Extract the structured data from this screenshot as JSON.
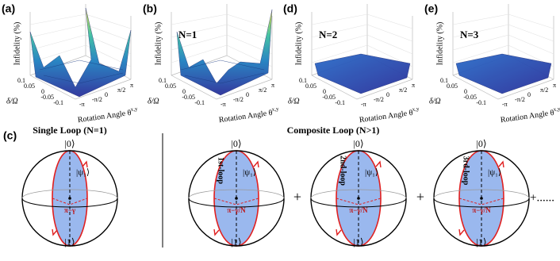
{
  "panels": [
    {
      "label": "(a)",
      "z_label": "Infidelity (%)",
      "y_label": "δ/Ω",
      "x_label": "Rotation Angle θ",
      "x_sub": "x,y",
      "y_ticks": [
        "0.1",
        "0.05",
        "0",
        "-0.05",
        "-0.1"
      ],
      "x_ticks": [
        "-π",
        "-π/2",
        "0",
        "π/2",
        "π"
      ]
    },
    {
      "label": "(b)",
      "title": "N=1",
      "z_label": "Infidelity (%)",
      "y_label": "δ/Ω",
      "x_label": "Rotation Angle θ",
      "x_sub": "x,y",
      "y_ticks": [
        "0.1",
        "0.05",
        "0",
        "-0.05",
        "-0.1"
      ],
      "x_ticks": [
        "-π",
        "-π/2",
        "0",
        "π/2",
        "π"
      ]
    },
    {
      "label": "(d)",
      "title": "N=2",
      "z_label": "Infidelity (%)",
      "y_label": "δ/Ω",
      "x_label": "Rotation Angle θ",
      "x_sub": "x,y",
      "y_ticks": [
        "0.1",
        "0.05",
        "0",
        "-0.05",
        "-0.1"
      ],
      "x_ticks": [
        "-π",
        "-π/2",
        "0",
        "π/2",
        "π"
      ]
    },
    {
      "label": "(e)",
      "title": "N=3",
      "z_label": "Infidelity (%)",
      "y_label": "δ/Ω",
      "x_label": "Rotation Angle θ",
      "x_sub": "x,y",
      "y_ticks": [
        "0.1",
        "0.05",
        "0",
        "-0.05",
        "-0.1"
      ],
      "x_ticks": [
        "-π",
        "-π/2",
        "0",
        "π/2",
        "π"
      ]
    }
  ],
  "bloch": {
    "label": "(c)",
    "single_title": "Single Loop (N=1)",
    "composite_title": "Composite Loop (N>1)",
    "spheres": [
      {
        "top": "|0⟩",
        "bottom": "|1⟩",
        "state": "|ψ₁⟩",
        "angle": "π−γ"
      },
      {
        "top": "|0⟩",
        "bottom": "|1⟩",
        "state": "|ψ₁⟩",
        "angle": "π−γ/N",
        "loop": "1st-loop"
      },
      {
        "top": "|0⟩",
        "bottom": "|1⟩",
        "state": "|ψ₁⟩",
        "angle": "π−γ/N",
        "loop": "2nd-loop"
      },
      {
        "top": "|0⟩",
        "bottom": "|1⟩",
        "state": "|ψ₁⟩",
        "angle": "π−γ/N",
        "loop": "3rd-loop"
      }
    ],
    "operators": [
      "+",
      "+",
      "+......"
    ]
  }
}
